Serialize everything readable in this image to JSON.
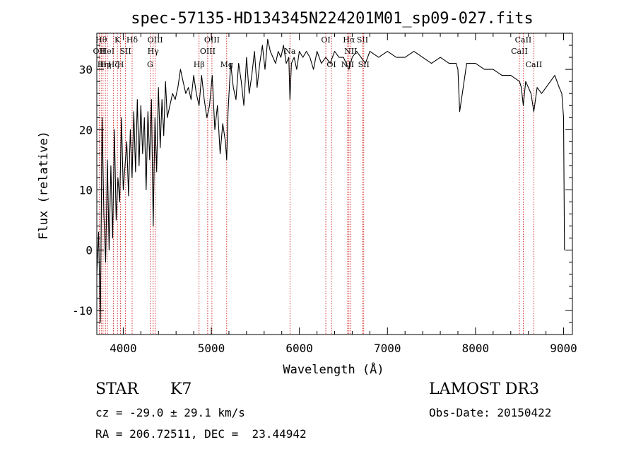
{
  "chart_data": {
    "type": "line",
    "title": "spec-57135-HD134345N224201M01_sp09-027.fits",
    "xlabel": "Wavelength (Å)",
    "ylabel": "Flux (relative)",
    "xlim": [
      3700,
      9100
    ],
    "ylim": [
      -14,
      36
    ],
    "xticks": [
      4000,
      5000,
      6000,
      7000,
      8000,
      9000
    ],
    "yticks": [
      -10,
      0,
      10,
      20,
      30
    ],
    "series": [
      {
        "name": "flux",
        "x": [
          3700,
          3720,
          3740,
          3760,
          3780,
          3800,
          3820,
          3840,
          3860,
          3880,
          3900,
          3920,
          3940,
          3960,
          3980,
          4000,
          4020,
          4040,
          4060,
          4080,
          4100,
          4120,
          4140,
          4160,
          4180,
          4200,
          4220,
          4240,
          4260,
          4280,
          4300,
          4320,
          4340,
          4360,
          4380,
          4400,
          4420,
          4440,
          4460,
          4480,
          4500,
          4530,
          4560,
          4590,
          4620,
          4650,
          4680,
          4710,
          4740,
          4770,
          4800,
          4830,
          4861,
          4890,
          4920,
          4950,
          4980,
          5010,
          5040,
          5070,
          5100,
          5130,
          5160,
          5175,
          5190,
          5220,
          5250,
          5280,
          5310,
          5340,
          5370,
          5400,
          5430,
          5460,
          5490,
          5520,
          5550,
          5580,
          5610,
          5640,
          5670,
          5700,
          5730,
          5760,
          5790,
          5820,
          5850,
          5880,
          5893,
          5910,
          5940,
          5970,
          6000,
          6040,
          6080,
          6120,
          6160,
          6200,
          6250,
          6300,
          6350,
          6400,
          6450,
          6500,
          6563,
          6600,
          6650,
          6700,
          6750,
          6800,
          6900,
          7000,
          7100,
          7200,
          7300,
          7400,
          7500,
          7600,
          7700,
          7780,
          7800,
          7820,
          7900,
          8000,
          8100,
          8200,
          8300,
          8400,
          8500,
          8520,
          8542,
          8570,
          8600,
          8630,
          8662,
          8700,
          8750,
          8800,
          8850,
          8900,
          8950,
          8980,
          9000,
          9010
        ],
        "values": [
          -4,
          3,
          -12,
          22,
          6,
          -2,
          15,
          0,
          14,
          2,
          20,
          5,
          12,
          8,
          22,
          10,
          14,
          18,
          9,
          20,
          12,
          23,
          13,
          25,
          14,
          24,
          16,
          22,
          10,
          23,
          15,
          25,
          4,
          22,
          13,
          27,
          17,
          25,
          19,
          28,
          22,
          24,
          26,
          25,
          27,
          30,
          28,
          26,
          27,
          25,
          29,
          26,
          24,
          29,
          25,
          22,
          24,
          29,
          20,
          24,
          16,
          21,
          18,
          15,
          23,
          31,
          27,
          25,
          31,
          28,
          24,
          32,
          26,
          29,
          33,
          27,
          31,
          34,
          30,
          35,
          33,
          32,
          31,
          33,
          32,
          34,
          31,
          32,
          25,
          31,
          32,
          30,
          33,
          32,
          33,
          32,
          30,
          33,
          31,
          32,
          31,
          33,
          32,
          32,
          30,
          32,
          33,
          32,
          31,
          33,
          32,
          33,
          32,
          32,
          33,
          32,
          31,
          32,
          31,
          31,
          30,
          23,
          31,
          31,
          30,
          30,
          29,
          29,
          28,
          27,
          24,
          28,
          27,
          26,
          23,
          27,
          26,
          27,
          28,
          29,
          27,
          26,
          22,
          0
        ]
      }
    ],
    "line_markers": [
      {
        "wave": 3727,
        "labels": [
          "OII"
        ],
        "row": 2
      },
      {
        "wave": 3750,
        "labels": [
          "Hθ"
        ],
        "row": 1
      },
      {
        "wave": 3771,
        "labels": [
          "Hη"
        ],
        "row": 3
      },
      {
        "wave": 3798,
        "labels": [
          "Hη"
        ],
        "row": 3
      },
      {
        "wave": 3820,
        "labels": [
          "HeI"
        ],
        "row": 2
      },
      {
        "wave": 3889,
        "labels": [
          "Hζ"
        ],
        "row": 3
      },
      {
        "wave": 3934,
        "labels": [
          "K"
        ],
        "row": 1
      },
      {
        "wave": 3969,
        "labels": [
          "H"
        ],
        "row": 3
      },
      {
        "wave": 4026,
        "labels": [
          "SII"
        ],
        "row": 2
      },
      {
        "wave": 4101,
        "labels": [
          "Hδ"
        ],
        "row": 1
      },
      {
        "wave": 4305,
        "labels": [
          "G"
        ],
        "row": 3
      },
      {
        "wave": 4340,
        "labels": [
          "Hγ"
        ],
        "row": 2
      },
      {
        "wave": 4363,
        "labels": [
          "OIII"
        ],
        "row": 1
      },
      {
        "wave": 4861,
        "labels": [
          "Hβ"
        ],
        "row": 3
      },
      {
        "wave": 4959,
        "labels": [
          "OIII"
        ],
        "row": 2
      },
      {
        "wave": 5007,
        "labels": [
          "OIII"
        ],
        "row": 1
      },
      {
        "wave": 5175,
        "labels": [
          "Mg"
        ],
        "row": 3
      },
      {
        "wave": 5893,
        "labels": [
          "Na"
        ],
        "row": 2
      },
      {
        "wave": 6300,
        "labels": [
          "OI"
        ],
        "row": 1
      },
      {
        "wave": 6364,
        "labels": [
          "OI"
        ],
        "row": 3
      },
      {
        "wave": 6548,
        "labels": [
          "NII"
        ],
        "row": 3
      },
      {
        "wave": 6563,
        "labels": [
          "Hα"
        ],
        "row": 1
      },
      {
        "wave": 6583,
        "labels": [
          "NII"
        ],
        "row": 2
      },
      {
        "wave": 6717,
        "labels": [
          "SII"
        ],
        "row": 1
      },
      {
        "wave": 6731,
        "labels": [
          "SII"
        ],
        "row": 3
      },
      {
        "wave": 8498,
        "labels": [
          "CaII"
        ],
        "row": 2
      },
      {
        "wave": 8542,
        "labels": [
          "CaII"
        ],
        "row": 1
      },
      {
        "wave": 8662,
        "labels": [
          "CaII"
        ],
        "row": 3
      }
    ],
    "colors": {
      "spectrum": "#000000",
      "markers": "#cc0000",
      "axes": "#000000"
    }
  },
  "info": {
    "object_type": "STAR",
    "subclass": "K7",
    "survey": "LAMOST DR3",
    "cz": "cz = -29.0 ± 29.1 km/s",
    "obs_date": "Obs-Date: 20150422",
    "coords": "RA = 206.72511, DEC =  23.44942"
  }
}
